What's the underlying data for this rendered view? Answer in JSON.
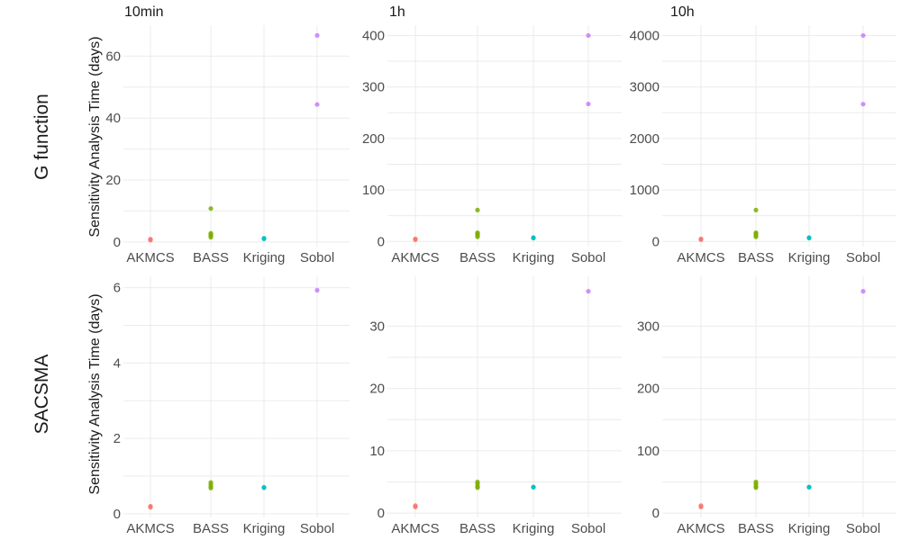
{
  "chart_data": {
    "type": "scatter",
    "y_axis_label": "Sensitivity Analysis Time (days)",
    "row_labels": [
      "G function",
      "SACSMA"
    ],
    "column_titles": [
      "10min",
      "1h",
      "10h"
    ],
    "categories": [
      "AKMCS",
      "BASS",
      "Kriging",
      "Sobol"
    ],
    "category_colors": {
      "AKMCS": "#F8766D",
      "BASS": "#7CAE00",
      "Kriging": "#00BFC4",
      "Sobol": "#C77CFF"
    },
    "grid": true,
    "legend": "none",
    "panels": [
      {
        "row": "G function",
        "column": "10min",
        "ylim": [
          -1.5,
          70
        ],
        "yticks": [
          0,
          20,
          40,
          60
        ],
        "points": {
          "AKMCS": [
            0.6,
            0.9
          ],
          "BASS": [
            1.5,
            2.0,
            2.4,
            2.8,
            10.8
          ],
          "Kriging": [
            1.0,
            1.2
          ],
          "Sobol": [
            44.4,
            66.7
          ]
        }
      },
      {
        "row": "G function",
        "column": "1h",
        "ylim": [
          -10,
          420
        ],
        "yticks": [
          0,
          100,
          200,
          300,
          400
        ],
        "points": {
          "AKMCS": [
            3.5,
            5.0
          ],
          "BASS": [
            9,
            12,
            15,
            17,
            61
          ],
          "Kriging": [
            6.5,
            7.5
          ],
          "Sobol": [
            267,
            400
          ]
        }
      },
      {
        "row": "G function",
        "column": "10h",
        "ylim": [
          -100,
          4200
        ],
        "yticks": [
          0,
          1000,
          2000,
          3000,
          4000
        ],
        "points": {
          "AKMCS": [
            35,
            50
          ],
          "BASS": [
            90,
            120,
            150,
            170,
            610
          ],
          "Kriging": [
            65,
            75
          ],
          "Sobol": [
            2667,
            4000
          ]
        }
      },
      {
        "row": "SACSMA",
        "column": "10min",
        "ylim": [
          -0.1,
          6.3
        ],
        "yticks": [
          0,
          2,
          4,
          6
        ],
        "points": {
          "AKMCS": [
            0.17,
            0.2
          ],
          "BASS": [
            0.68,
            0.72,
            0.78,
            0.83
          ],
          "Kriging": [
            0.69,
            0.7
          ],
          "Sobol": [
            5.93
          ]
        }
      },
      {
        "row": "SACSMA",
        "column": "1h",
        "ylim": [
          -0.7,
          38
        ],
        "yticks": [
          0,
          10,
          20,
          30
        ],
        "points": {
          "AKMCS": [
            1.0,
            1.2
          ],
          "BASS": [
            4.1,
            4.3,
            4.7,
            5.0
          ],
          "Kriging": [
            4.15,
            4.2
          ],
          "Sobol": [
            35.6
          ]
        }
      },
      {
        "row": "SACSMA",
        "column": "10h",
        "ylim": [
          -7,
          380
        ],
        "yticks": [
          0,
          100,
          200,
          300
        ],
        "points": {
          "AKMCS": [
            10,
            12
          ],
          "BASS": [
            41,
            43,
            47,
            50
          ],
          "Kriging": [
            41.5,
            42
          ],
          "Sobol": [
            356
          ]
        }
      }
    ]
  }
}
